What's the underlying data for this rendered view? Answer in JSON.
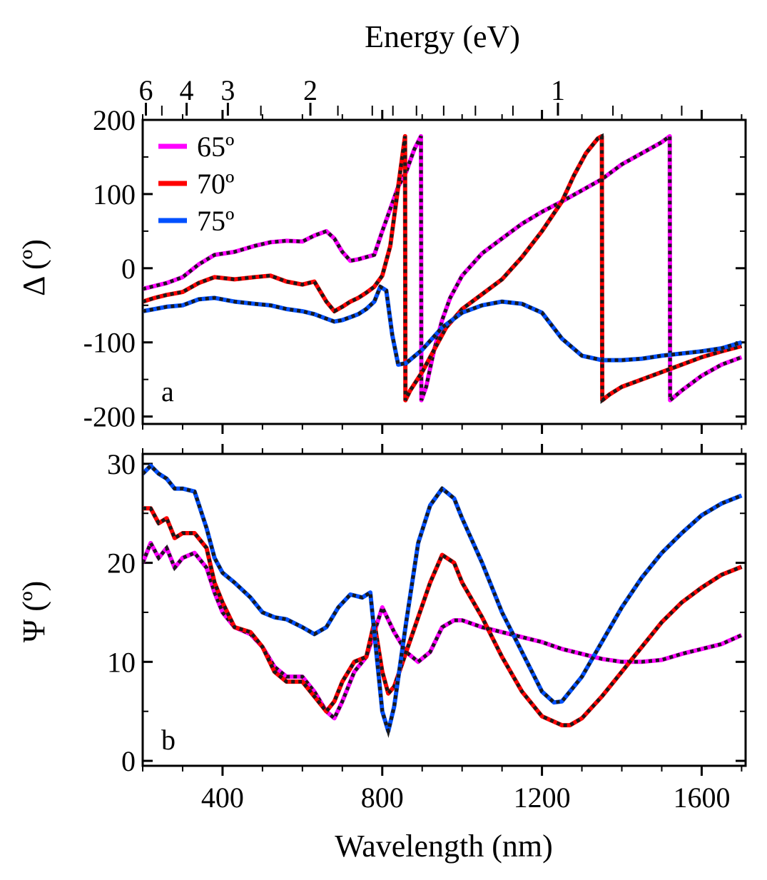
{
  "chart_data": [
    {
      "panel": "a",
      "type": "line",
      "title": "",
      "top_axis": {
        "label": "Energy (eV)",
        "tick_labels": [
          "6",
          "4",
          "3",
          "2",
          "1"
        ],
        "tick_values_ev": [
          6,
          4,
          3,
          2,
          1
        ]
      },
      "xlabel": "",
      "ylabel": "Δ (º)",
      "xlim": [
        200,
        1710
      ],
      "ylim": [
        -210,
        200
      ],
      "y_tick_labels": [
        "200",
        "100",
        "0",
        "-100",
        "-200"
      ],
      "y_tick_values": [
        200,
        100,
        0,
        -100,
        -200
      ],
      "legend": {
        "placement": "top-left",
        "entries": [
          {
            "label": "65º",
            "color": "#ff00ff"
          },
          {
            "label": "70º",
            "color": "#ff0000"
          },
          {
            "label": "75º",
            "color": "#0050ff"
          }
        ]
      },
      "series": [
        {
          "name": "65º",
          "color": "#ff00ff",
          "fit_overlay": true,
          "x": [
            200,
            230,
            260,
            300,
            340,
            380,
            430,
            480,
            520,
            560,
            600,
            630,
            660,
            680,
            700,
            720,
            740,
            760,
            780,
            800,
            820,
            840,
            860,
            880,
            897,
            898,
            910,
            930,
            950,
            970,
            1000,
            1050,
            1100,
            1150,
            1200,
            1250,
            1300,
            1350,
            1400,
            1450,
            1500,
            1520,
            1521,
            1550,
            1600,
            1650,
            1700
          ],
          "y": [
            -28,
            -24,
            -20,
            -12,
            5,
            18,
            22,
            30,
            35,
            37,
            36,
            44,
            50,
            40,
            22,
            10,
            12,
            15,
            18,
            50,
            80,
            110,
            130,
            160,
            178,
            -178,
            -160,
            -110,
            -70,
            -40,
            -10,
            20,
            40,
            60,
            76,
            90,
            105,
            120,
            140,
            155,
            170,
            178,
            -178,
            -165,
            -145,
            -130,
            -120
          ]
        },
        {
          "name": "70º",
          "color": "#ff0000",
          "fit_overlay": true,
          "x": [
            200,
            230,
            260,
            300,
            340,
            380,
            430,
            480,
            520,
            560,
            600,
            630,
            660,
            680,
            700,
            720,
            740,
            760,
            780,
            800,
            820,
            840,
            857,
            858,
            870,
            900,
            930,
            960,
            1000,
            1050,
            1100,
            1150,
            1200,
            1250,
            1280,
            1310,
            1340,
            1350,
            1351,
            1370,
            1400,
            1450,
            1500,
            1550,
            1600,
            1650,
            1700
          ],
          "y": [
            -45,
            -40,
            -36,
            -32,
            -20,
            -12,
            -15,
            -12,
            -10,
            -18,
            -22,
            -18,
            -45,
            -58,
            -52,
            -45,
            -40,
            -33,
            -25,
            -10,
            30,
            110,
            178,
            -178,
            -165,
            -140,
            -110,
            -80,
            -55,
            -35,
            -15,
            15,
            50,
            90,
            125,
            155,
            175,
            178,
            -178,
            -170,
            -160,
            -150,
            -140,
            -130,
            -120,
            -112,
            -105
          ]
        },
        {
          "name": "75º",
          "color": "#0050ff",
          "fit_overlay": true,
          "x": [
            200,
            230,
            260,
            300,
            340,
            380,
            430,
            480,
            520,
            560,
            600,
            630,
            660,
            680,
            700,
            720,
            740,
            760,
            780,
            795,
            810,
            825,
            840,
            860,
            900,
            950,
            1000,
            1050,
            1100,
            1150,
            1200,
            1250,
            1300,
            1350,
            1400,
            1450,
            1500,
            1550,
            1600,
            1650,
            1700
          ],
          "y": [
            -58,
            -55,
            -52,
            -50,
            -42,
            -40,
            -45,
            -48,
            -50,
            -55,
            -58,
            -62,
            -68,
            -72,
            -70,
            -66,
            -62,
            -55,
            -45,
            -25,
            -30,
            -90,
            -130,
            -128,
            -110,
            -80,
            -60,
            -50,
            -45,
            -48,
            -60,
            -95,
            -118,
            -124,
            -124,
            -122,
            -118,
            -115,
            -112,
            -108,
            -100
          ]
        }
      ]
    },
    {
      "panel": "b",
      "type": "line",
      "title": "",
      "xlabel": "Wavelength (nm)",
      "ylabel": "Ψ (º)",
      "xlim": [
        200,
        1710
      ],
      "ylim": [
        -0.5,
        31
      ],
      "x_tick_labels": [
        "400",
        "800",
        "1200",
        "1600"
      ],
      "x_tick_values": [
        400,
        800,
        1200,
        1600
      ],
      "y_tick_labels": [
        "30",
        "20",
        "10",
        "0"
      ],
      "y_tick_values": [
        30,
        20,
        10,
        0
      ],
      "series": [
        {
          "name": "65º",
          "color": "#ff00ff",
          "fit_overlay": true,
          "x": [
            200,
            220,
            240,
            260,
            280,
            300,
            330,
            360,
            380,
            400,
            430,
            470,
            500,
            530,
            560,
            600,
            630,
            660,
            680,
            700,
            730,
            760,
            780,
            800,
            830,
            860,
            890,
            920,
            950,
            980,
            1000,
            1050,
            1100,
            1150,
            1200,
            1250,
            1300,
            1350,
            1400,
            1450,
            1500,
            1550,
            1600,
            1650,
            1700
          ],
          "y": [
            20,
            22,
            20.5,
            21.5,
            19.5,
            20.5,
            21,
            19.5,
            17,
            15,
            13.5,
            12.8,
            11.5,
            9.5,
            8.5,
            8.5,
            7,
            5,
            4.3,
            6,
            9,
            10.5,
            13,
            15.5,
            13,
            11,
            10,
            11,
            13.5,
            14.2,
            14.2,
            13.5,
            13,
            12.5,
            12,
            11.3,
            10.8,
            10.3,
            10,
            10,
            10.2,
            10.8,
            11.3,
            11.8,
            12.7
          ]
        },
        {
          "name": "70º",
          "color": "#ff0000",
          "fit_overlay": true,
          "x": [
            200,
            220,
            240,
            260,
            280,
            300,
            330,
            360,
            380,
            400,
            430,
            470,
            500,
            530,
            560,
            600,
            630,
            660,
            680,
            700,
            730,
            760,
            780,
            800,
            815,
            830,
            860,
            890,
            920,
            950,
            980,
            1000,
            1050,
            1100,
            1150,
            1200,
            1250,
            1270,
            1300,
            1350,
            1400,
            1450,
            1500,
            1550,
            1600,
            1650,
            1700
          ],
          "y": [
            25.5,
            25.5,
            24,
            24.5,
            22.5,
            23,
            23,
            21.5,
            18,
            16,
            13.5,
            13,
            11.5,
            9,
            8,
            8,
            6.5,
            5,
            6,
            8,
            10,
            10.5,
            14,
            9,
            6.8,
            7.5,
            11,
            14.5,
            18,
            20.8,
            20,
            18,
            14.5,
            10.5,
            7,
            4.5,
            3.6,
            3.6,
            4.3,
            6.5,
            9,
            11.5,
            14,
            16,
            17.5,
            18.8,
            19.6
          ]
        },
        {
          "name": "75º",
          "color": "#0050ff",
          "fit_overlay": true,
          "x": [
            200,
            220,
            240,
            260,
            280,
            300,
            330,
            360,
            380,
            400,
            430,
            470,
            500,
            530,
            560,
            600,
            630,
            660,
            690,
            720,
            750,
            770,
            790,
            800,
            815,
            830,
            860,
            890,
            920,
            950,
            980,
            1000,
            1050,
            1100,
            1150,
            1200,
            1230,
            1250,
            1300,
            1350,
            1400,
            1450,
            1500,
            1550,
            1600,
            1650,
            1700
          ],
          "y": [
            29,
            29.8,
            29,
            28.5,
            27.5,
            27.5,
            27.2,
            23.5,
            20.5,
            19,
            18,
            16.5,
            15,
            14.5,
            14.3,
            13.5,
            12.8,
            13.5,
            15.5,
            16.8,
            16.5,
            17,
            9,
            5,
            3,
            5.5,
            14,
            22,
            25.8,
            27.5,
            26.5,
            24.5,
            20,
            15,
            11,
            7,
            5.9,
            6,
            8.5,
            12,
            15.5,
            18.5,
            21,
            23,
            24.8,
            26,
            26.8
          ]
        }
      ]
    }
  ]
}
